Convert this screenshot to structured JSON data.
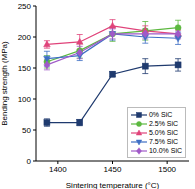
{
  "chart_data": {
    "type": "line",
    "x_label": "Sintering temperature (°C)",
    "y_label": "Bending strength (MPa)",
    "x": [
      1390,
      1420,
      1450,
      1480,
      1510
    ],
    "xlim": [
      1380,
      1520
    ],
    "xticks": [
      1400,
      1450,
      1500
    ],
    "ylim": [
      0,
      250
    ],
    "yticks": [
      0,
      50,
      100,
      150,
      200,
      250
    ],
    "grid": false,
    "legend": "lower right",
    "series": [
      {
        "name": "0% SiC",
        "color": "#1f3a6e",
        "marker": "square",
        "values": [
          62,
          62,
          140,
          153,
          155
        ],
        "errors": [
          6,
          5,
          4,
          12,
          10
        ]
      },
      {
        "name": "2.5% SiC",
        "color": "#5cb83f",
        "marker": "circle",
        "values": [
          160,
          178,
          205,
          210,
          215
        ],
        "errors": [
          10,
          12,
          12,
          15,
          12
        ]
      },
      {
        "name": "5.0% SiC",
        "color": "#e0437a",
        "marker": "triangle",
        "values": [
          188,
          192,
          218,
          210,
          205
        ],
        "errors": [
          6,
          12,
          10,
          8,
          6
        ]
      },
      {
        "name": "7.5% SiC",
        "color": "#3e6fc4",
        "marker": "triangle-down",
        "values": [
          165,
          170,
          205,
          200,
          198
        ],
        "errors": [
          12,
          8,
          10,
          10,
          10
        ]
      },
      {
        "name": "10.0% SiC",
        "color": "#a05ac8",
        "marker": "diamond",
        "values": [
          155,
          175,
          205,
          205,
          205
        ],
        "errors": [
          8,
          10,
          8,
          8,
          8
        ]
      }
    ]
  }
}
